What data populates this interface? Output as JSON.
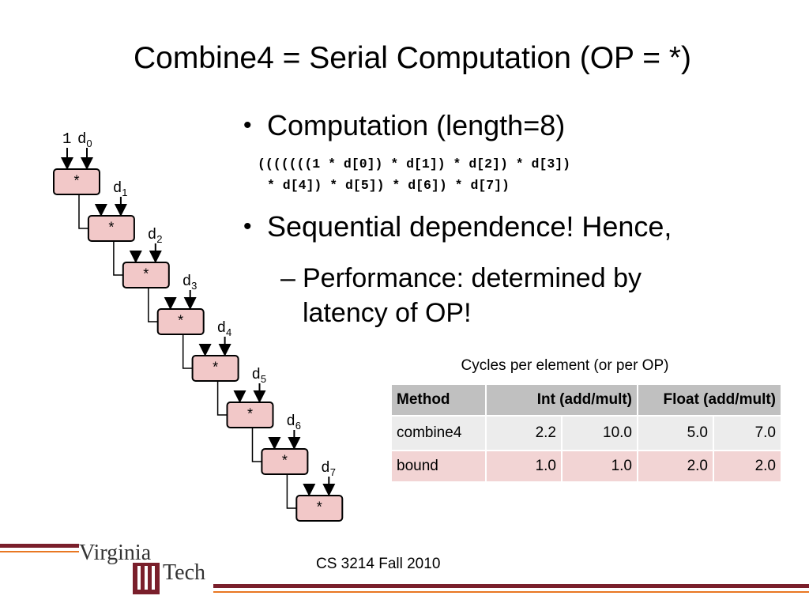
{
  "title": "Combine4 = Serial Computation (OP = *)",
  "bullets": [
    {
      "text": "Computation (length=8)",
      "code": [
        "(((((((1 * d[0]) * d[1]) * d[2]) * d[3])",
        "* d[4]) * d[5]) * d[6]) * d[7])"
      ]
    },
    {
      "text": "Sequential dependence! Hence,",
      "sub": "Performance: determined by latency of OP!"
    }
  ],
  "diagram": {
    "initial": "1",
    "operator": "*",
    "inputs": [
      {
        "name": "d",
        "index": "0"
      },
      {
        "name": "d",
        "index": "1"
      },
      {
        "name": "d",
        "index": "2"
      },
      {
        "name": "d",
        "index": "3"
      },
      {
        "name": "d",
        "index": "4"
      },
      {
        "name": "d",
        "index": "5"
      },
      {
        "name": "d",
        "index": "6"
      },
      {
        "name": "d",
        "index": "7"
      }
    ]
  },
  "table": {
    "caption": "Cycles per element (or per OP)",
    "header": [
      "Method",
      "Int (add/mult)",
      "Float (add/mult)"
    ],
    "rows": [
      [
        "combine4",
        "2.2",
        "10.0",
        "5.0",
        "7.0"
      ],
      [
        "bound",
        "1.0",
        "1.0",
        "2.0",
        "2.0"
      ]
    ]
  },
  "footer": {
    "course": "CS 3214 Fall 2010",
    "logo": [
      "Virginia",
      "Tech"
    ]
  }
}
